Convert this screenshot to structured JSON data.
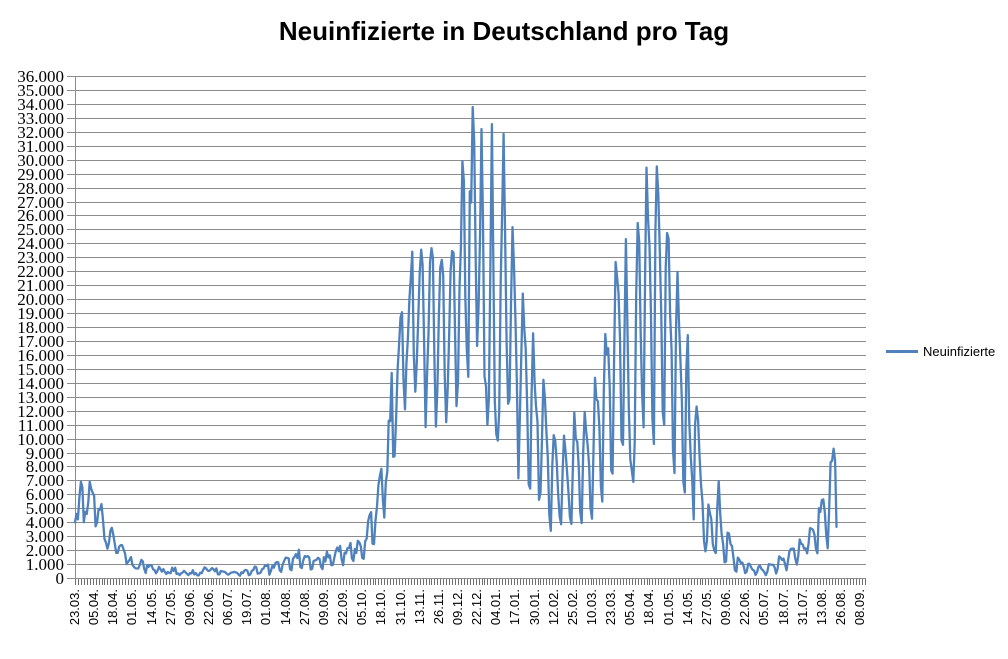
{
  "title": "Neuinfizierte in Deutschland pro Tag",
  "legend": {
    "label": "Neuinfizierte",
    "color": "#4F81BD",
    "position": "right"
  },
  "chart_data": {
    "type": "line",
    "title": "Neuinfizierte in Deutschland pro Tag",
    "series_name": "Neuinfizierte",
    "line_color": "#4F81BD",
    "gridline_color": "#8C8C8C",
    "tick_band_color": "#6F6F6F",
    "grid": true,
    "legend_position": "right",
    "ylim": [
      0,
      36000
    ],
    "y_step": 1000,
    "y_tick_labels": [
      "0",
      "1.000",
      "2.000",
      "3.000",
      "4.000",
      "5.000",
      "6.000",
      "7.000",
      "8.000",
      "9.000",
      "10.000",
      "11.000",
      "12.000",
      "13.000",
      "14.000",
      "15.000",
      "16.000",
      "17.000",
      "18.000",
      "19.000",
      "20.000",
      "21.000",
      "22.000",
      "23.000",
      "24.000",
      "25.000",
      "26.000",
      "27.000",
      "28.000",
      "29.000",
      "30.000",
      "31.000",
      "32.000",
      "33.000",
      "34.000",
      "35.000",
      "36.000"
    ],
    "x_tick_labels": [
      "23.03.",
      "05.04.",
      "18.04.",
      "01.05.",
      "14.05.",
      "27.05.",
      "09.06.",
      "22.06.",
      "06.07.",
      "19.07.",
      "01.08.",
      "14.08.",
      "27.08.",
      "09.09.",
      "22.09.",
      "05.10.",
      "18.10.",
      "31.10.",
      "13.11.",
      "26.11.",
      "09.12.",
      "22.12.",
      "04.01.",
      "17.01.",
      "30.01.",
      "12.02.",
      "25.02.",
      "10.03.",
      "23.03.",
      "05.04.",
      "18.04.",
      "01.05.",
      "14.05.",
      "27.05.",
      "09.06.",
      "22.06.",
      "05.07.",
      "18.07.",
      "31.07.",
      "13.08.",
      "26.08.",
      "08.09."
    ],
    "x_tick_interval_days": 13,
    "x_start_date": "23.03.2020",
    "x_end_data_date": "22.08.2021",
    "axis_total_categories": 538,
    "values": [
      4000,
      4600,
      4200,
      5800,
      6900,
      6500,
      4000,
      4750,
      4600,
      5450,
      6900,
      6400,
      6100,
      5900,
      3700,
      4000,
      4950,
      4900,
      5300,
      4150,
      2800,
      2550,
      2100,
      2500,
      3400,
      3600,
      3100,
      2450,
      1800,
      1800,
      2250,
      2350,
      2350,
      2050,
      1750,
      1000,
      1150,
      1300,
      1500,
      950,
      800,
      700,
      680,
      690,
      950,
      1300,
      1200,
      670,
      360,
      930,
      800,
      930,
      910,
      620,
      580,
      340,
      510,
      800,
      640,
      460,
      640,
      430,
      290,
      430,
      360,
      350,
      740,
      510,
      740,
      290,
      330,
      210,
      340,
      390,
      510,
      410,
      300,
      210,
      350,
      320,
      560,
      260,
      350,
      190,
      190,
      380,
      350,
      580,
      770,
      690,
      540,
      500,
      580,
      710,
      630,
      480,
      690,
      260,
      260,
      500,
      470,
      450,
      420,
      300,
      240,
      310,
      390,
      400,
      440,
      400,
      380,
      250,
      160,
      410,
      350,
      530,
      580,
      530,
      200,
      250,
      520,
      560,
      820,
      780,
      310,
      340,
      390,
      630,
      680,
      900,
      870,
      960,
      240,
      510,
      880,
      740,
      1050,
      1150,
      1120,
      560,
      440,
      970,
      1230,
      1450,
      1450,
      1420,
      630,
      560,
      1390,
      1510,
      1710,
      1430,
      2030,
      780,
      710,
      1280,
      1580,
      1510,
      1570,
      1480,
      610,
      670,
      1220,
      1260,
      1310,
      1450,
      1380,
      810,
      630,
      1500,
      1180,
      1890,
      1480,
      1630,
      920,
      930,
      1410,
      1900,
      2190,
      1920,
      2300,
      1350,
      920,
      1820,
      1770,
      2140,
      2150,
      2510,
      1410,
      1220,
      2090,
      1800,
      2670,
      2560,
      2280,
      1450,
      1380,
      2640,
      2830,
      4060,
      4520,
      4720,
      2470,
      2430,
      4120,
      5130,
      6640,
      7330,
      7830,
      5590,
      4330,
      6870,
      7600,
      11290,
      11240,
      14710,
      8690,
      8740,
      11410,
      14960,
      16770,
      18680,
      19060,
      14180,
      12100,
      15350,
      17210,
      19990,
      21510,
      23400,
      16020,
      13360,
      15330,
      18490,
      21870,
      23540,
      22460,
      16950,
      10820,
      14420,
      17560,
      22610,
      23650,
      22960,
      15740,
      10860,
      13550,
      18630,
      22270,
      22810,
      21700,
      14610,
      11170,
      13600,
      17270,
      22050,
      23450,
      23320,
      17770,
      12330,
      14050,
      20820,
      23680,
      29880,
      28440,
      20200,
      16360,
      14430,
      27730,
      26920,
      33780,
      31300,
      22770,
      16640,
      19530,
      24740,
      32200,
      25530,
      14460,
      13760,
      10980,
      12890,
      22460,
      32550,
      22920,
      12690,
      10320,
      9850,
      11900,
      21240,
      26390,
      31850,
      24690,
      16950,
      12500,
      12800,
      19600,
      25160,
      22370,
      18680,
      13880,
      7140,
      11370,
      15970,
      20400,
      17860,
      16420,
      12260,
      6730,
      6410,
      13200,
      17550,
      14020,
      12320,
      11190,
      5610,
      6110,
      9710,
      14210,
      12910,
      10490,
      8620,
      4540,
      3380,
      8070,
      10240,
      9860,
      8350,
      6110,
      4430,
      3860,
      7560,
      10210,
      9110,
      7680,
      6110,
      4370,
      3880,
      8010,
      11870,
      10000,
      9760,
      7890,
      4730,
      3940,
      9020,
      11910,
      10580,
      9560,
      8100,
      5010,
      4250,
      9150,
      14360,
      12830,
      12670,
      10790,
      6600,
      5480,
      13440,
      17500,
      16030,
      16470,
      13730,
      7710,
      7490,
      15810,
      22660,
      21570,
      20470,
      17180,
      9870,
      9550,
      17050,
      24300,
      18130,
      12200,
      8500,
      7710,
      6890,
      9680,
      20410,
      25460,
      24100,
      17860,
      13250,
      10810,
      21690,
      29430,
      25830,
      23800,
      19190,
      11440,
      9610,
      24880,
      29520,
      27540,
      23390,
      18770,
      11910,
      10980,
      22230,
      24740,
      24330,
      18940,
      16290,
      9160,
      7530,
      17860,
      21950,
      18490,
      15690,
      12660,
      6920,
      6130,
      14910,
      17420,
      11340,
      8770,
      7080,
      4210,
      11040,
      12300,
      11300,
      8680,
      6710,
      5430,
      2680,
      1910,
      2630,
      5270,
      4640,
      4210,
      2440,
      1980,
      1790,
      4920,
      6950,
      4640,
      3170,
      2440,
      1120,
      1200,
      3250,
      3190,
      2440,
      2290,
      1490,
      550,
      460,
      1460,
      1330,
      1080,
      1110,
      840,
      350,
      460,
      1020,
      1010,
      770,
      590,
      540,
      220,
      400,
      810,
      890,
      650,
      560,
      400,
      210,
      440,
      990,
      970,
      950,
      950,
      750,
      320,
      650,
      1550,
      1460,
      1290,
      1390,
      1010,
      550,
      1180,
      1890,
      2090,
      2100,
      2100,
      1390,
      960,
      1550,
      2770,
      2450,
      2400,
      2100,
      2130,
      1770,
      2480,
      3570,
      3540,
      3450,
      3130,
      2100,
      1770,
      5000,
      4730,
      5580,
      5640,
      4730,
      3130,
      2130,
      5000,
      8320,
      8400,
      9280,
      8420,
      3670
    ]
  }
}
